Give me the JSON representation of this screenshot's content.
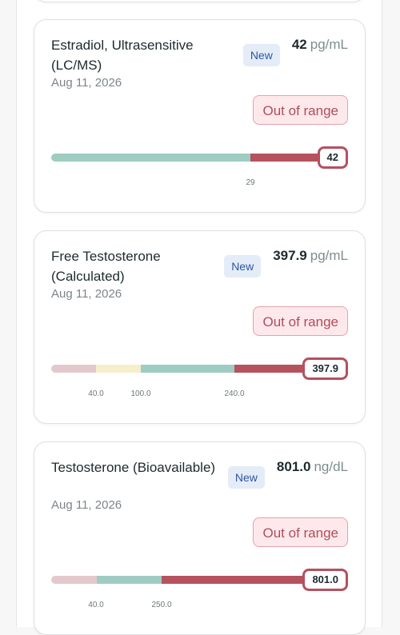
{
  "cards": [
    {
      "title": "Estradiol, Ultrasensitive (LC/MS)",
      "date": "Aug 11, 2026",
      "badge": "New",
      "value": "42",
      "unit": "pg/mL",
      "status": "Out of range",
      "marker": "42",
      "ticks": [
        "29"
      ]
    },
    {
      "title": "Free Testosterone (Calculated)",
      "date": "Aug 11, 2026",
      "badge": "New",
      "value": "397.9",
      "unit": "pg/mL",
      "status": "Out of range",
      "marker": "397.9",
      "ticks": [
        "40.0",
        "100.0",
        "240.0"
      ]
    },
    {
      "title": "Testosterone (Bioavailable)",
      "date": "Aug 11, 2026",
      "badge": "New",
      "value": "801.0",
      "unit": "ng/dL",
      "status": "Out of range",
      "marker": "801.0",
      "ticks": [
        "40.0",
        "250.0"
      ]
    }
  ]
}
